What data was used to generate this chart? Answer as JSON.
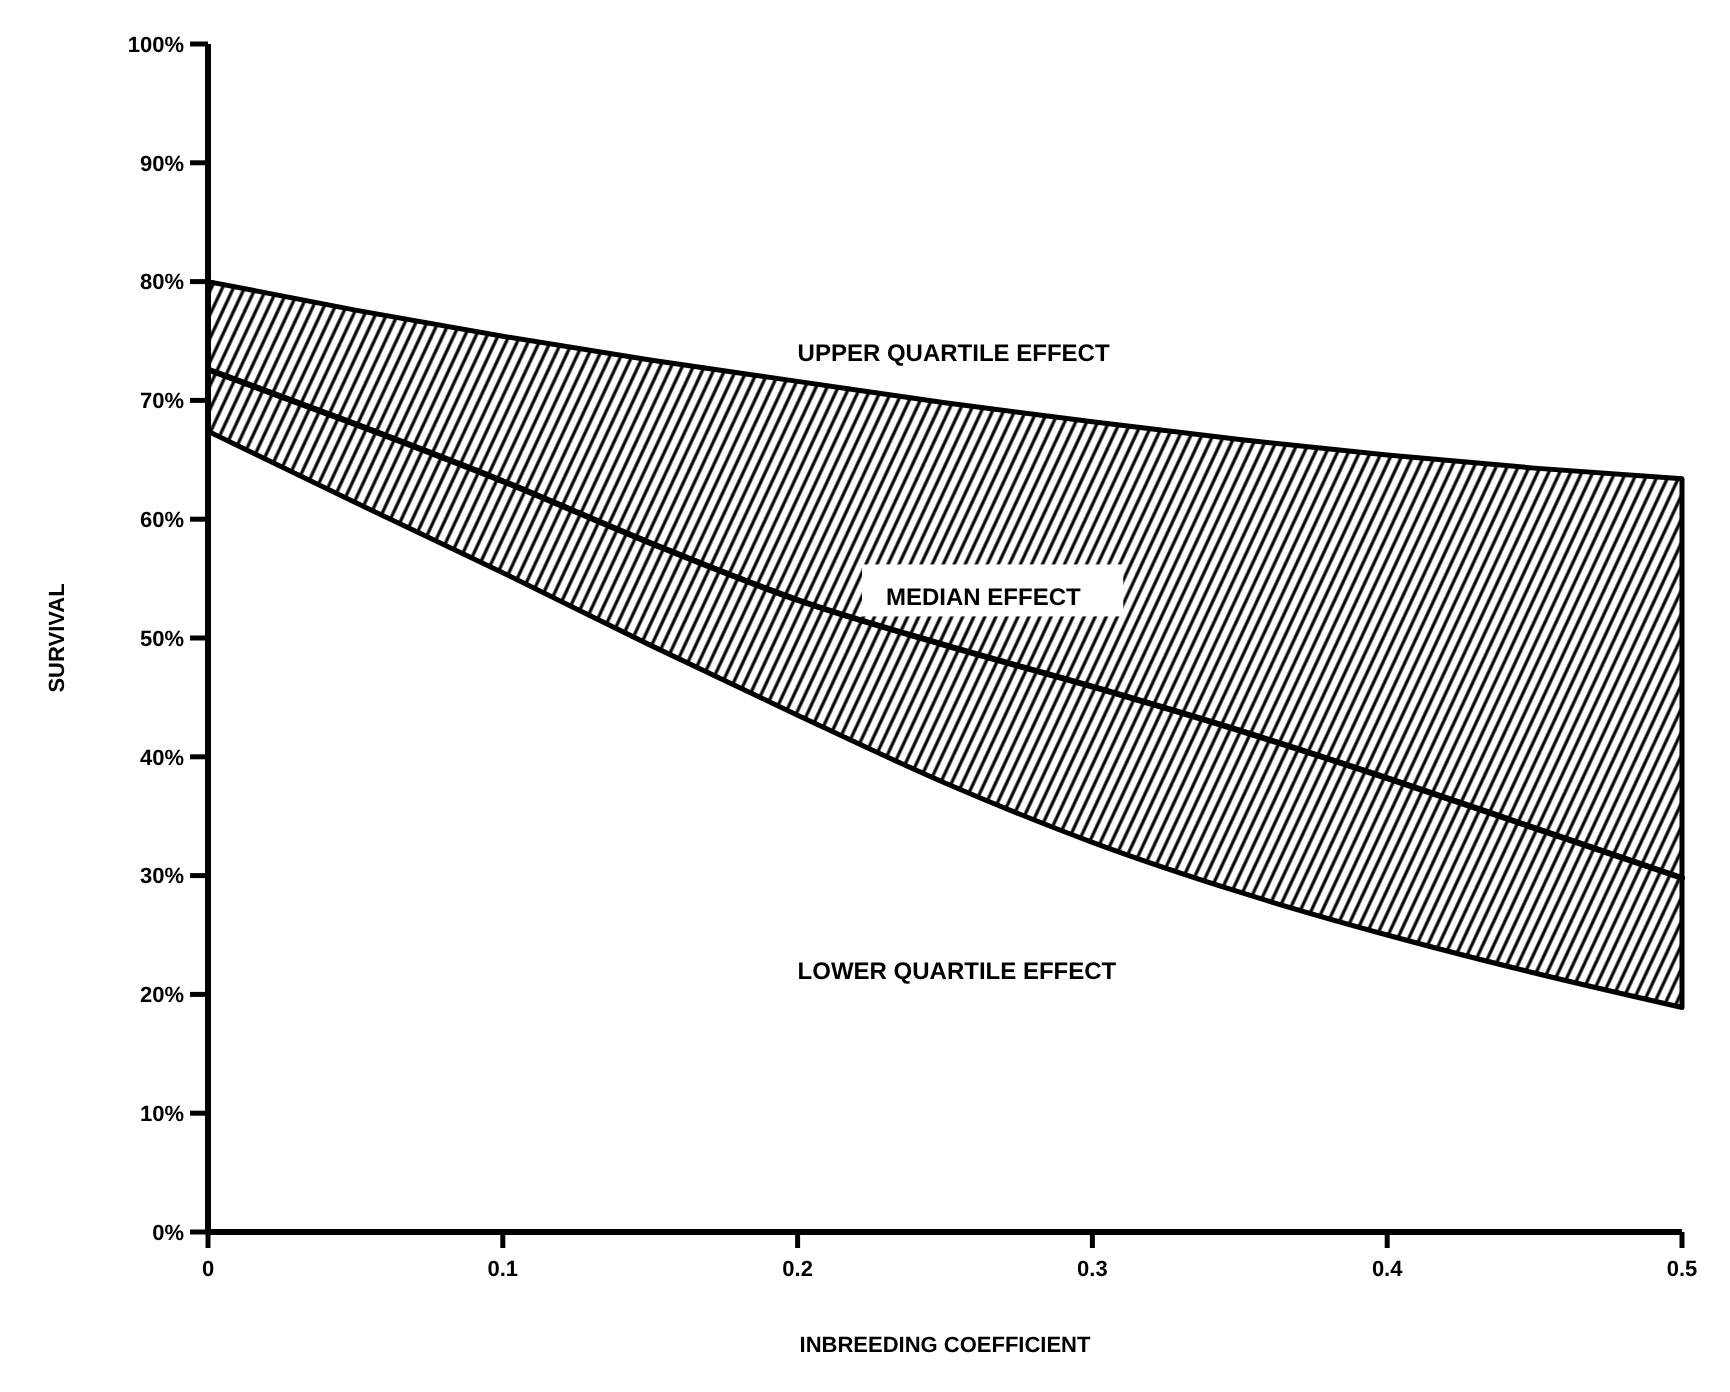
{
  "chart_data": {
    "type": "line",
    "xlabel": "INBREEDING COEFFICIENT",
    "ylabel": "SURVIVAL",
    "x": [
      0,
      0.05,
      0.1,
      0.15,
      0.2,
      0.25,
      0.3,
      0.35,
      0.4,
      0.45,
      0.5
    ],
    "series": [
      {
        "color": "#000000",
        "values": [
          72.6,
          68,
          63.2,
          58,
          53.2,
          49.4,
          45.9,
          42.2,
          38.2,
          34,
          29.8
        ],
        "lower": [
          67.4,
          61.4,
          55.5,
          49.4,
          43.5,
          37.8,
          32.8,
          28.6,
          25,
          21.8,
          18.9
        ],
        "upper": [
          80,
          77.6,
          75.4,
          73.4,
          71.6,
          69.8,
          68.2,
          66.7,
          65.4,
          64.3,
          63.4
        ]
      }
    ],
    "xlim": [
      0,
      0.5
    ],
    "xticks": [
      0,
      0.1,
      0.2,
      0.3,
      0.4,
      0.5
    ],
    "ylim": [
      0,
      100
    ],
    "yticks": [
      {
        "value": 0,
        "label": "0%"
      },
      {
        "value": 10,
        "label": "10%"
      },
      {
        "value": 20,
        "label": "20%"
      },
      {
        "value": 30,
        "label": "30%"
      },
      {
        "value": 40,
        "label": "40%"
      },
      {
        "value": 50,
        "label": "50%"
      },
      {
        "value": 60,
        "label": "60%"
      },
      {
        "value": 70,
        "label": "70%"
      },
      {
        "value": 80,
        "label": "80%"
      },
      {
        "value": 90,
        "label": "90%"
      },
      {
        "value": 100,
        "label": "100%"
      }
    ],
    "line_style": "solid",
    "annotations": [
      "UPPER QUARTILE EFFECT",
      "MEDIAN EFFECT",
      "LOWER QUARTILE EFFECT"
    ]
  }
}
